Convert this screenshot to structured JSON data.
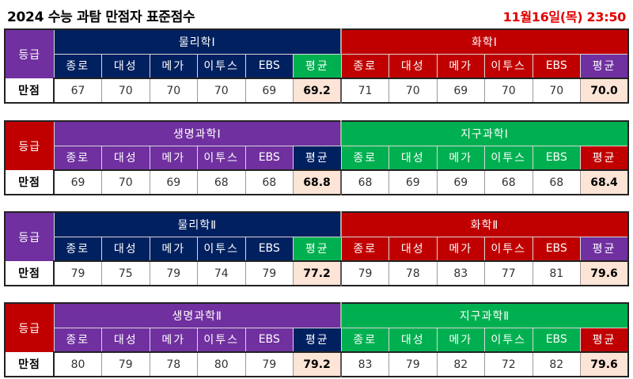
{
  "header": {
    "title": "2024 수능 과탐 만점자 표준점수",
    "datetime": "11월16일(목) 23:50"
  },
  "labels": {
    "grade_header": "등급",
    "grade_row": "만점"
  },
  "sources": [
    "종로",
    "대성",
    "메가",
    "이투스",
    "EBS"
  ],
  "average_label": "평균",
  "colors": {
    "navy": "#002060",
    "red": "#c00000",
    "purple": "#7030a0",
    "green": "#00b050",
    "average_cell": "#fce4d6",
    "datetime_text": "#e00000"
  },
  "tables": [
    {
      "grade_header_color": "purple",
      "subjects": [
        {
          "name": "물리학Ⅰ",
          "color": "navy",
          "avg_color": "green",
          "scores": [
            "67",
            "70",
            "70",
            "70",
            "69"
          ],
          "average": "69.2"
        },
        {
          "name": "화학Ⅰ",
          "color": "red",
          "avg_color": "purple",
          "scores": [
            "71",
            "70",
            "69",
            "70",
            "70"
          ],
          "average": "70.0"
        }
      ]
    },
    {
      "grade_header_color": "red",
      "subjects": [
        {
          "name": "생명과학Ⅰ",
          "color": "purple",
          "avg_color": "navy",
          "scores": [
            "69",
            "70",
            "69",
            "68",
            "68"
          ],
          "average": "68.8"
        },
        {
          "name": "지구과학Ⅰ",
          "color": "green",
          "avg_color": "red",
          "scores": [
            "68",
            "69",
            "69",
            "68",
            "68"
          ],
          "average": "68.4"
        }
      ]
    },
    {
      "grade_header_color": "purple",
      "subjects": [
        {
          "name": "물리학Ⅱ",
          "color": "navy",
          "avg_color": "green",
          "scores": [
            "79",
            "75",
            "79",
            "74",
            "79"
          ],
          "average": "77.2"
        },
        {
          "name": "화학Ⅱ",
          "color": "red",
          "avg_color": "purple",
          "scores": [
            "79",
            "78",
            "83",
            "77",
            "81"
          ],
          "average": "79.6"
        }
      ]
    },
    {
      "grade_header_color": "red",
      "subjects": [
        {
          "name": "생명과학Ⅱ",
          "color": "purple",
          "avg_color": "navy",
          "scores": [
            "80",
            "79",
            "78",
            "80",
            "79"
          ],
          "average": "79.2"
        },
        {
          "name": "지구과학Ⅱ",
          "color": "green",
          "avg_color": "red",
          "scores": [
            "83",
            "79",
            "82",
            "72",
            "82"
          ],
          "average": "79.6"
        }
      ]
    }
  ]
}
